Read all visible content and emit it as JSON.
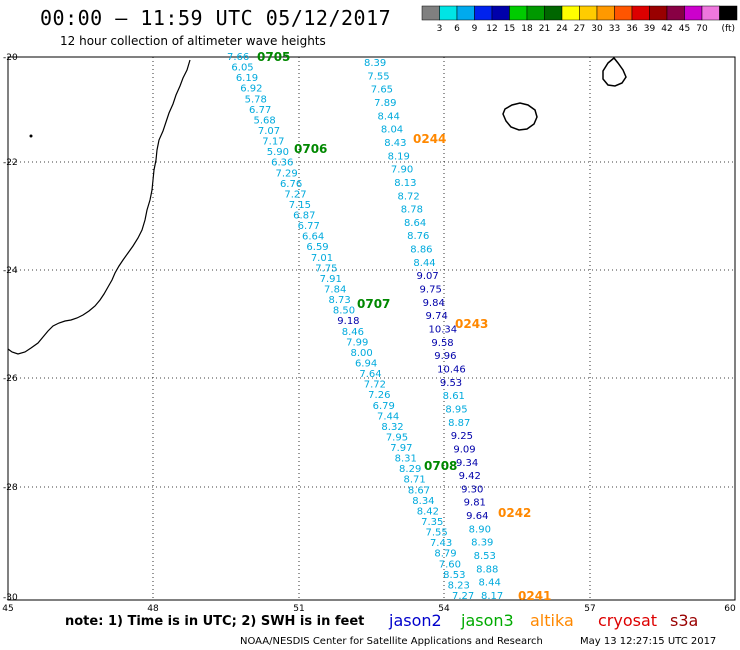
{
  "header": {
    "title": "00:00 – 11:59 UTC 05/12/2017",
    "subtitle": "12 hour collection of altimeter wave heights"
  },
  "colorbar": {
    "unit": "(ft)",
    "ticks": [
      "3",
      "6",
      "9",
      "12",
      "15",
      "18",
      "21",
      "24",
      "27",
      "30",
      "33",
      "36",
      "39",
      "42",
      "45",
      "70"
    ],
    "colors": [
      "#808080",
      "#00e5e5",
      "#00aaee",
      "#0022ee",
      "#0000aa",
      "#00cc00",
      "#009900",
      "#006600",
      "#ffff00",
      "#ffcc00",
      "#ff9900",
      "#ff5500",
      "#dd0000",
      "#990000",
      "#880044",
      "#cc00cc",
      "#ee77dd",
      "#000000"
    ]
  },
  "map": {
    "lat_labels": [
      "-20",
      "-22",
      "-24",
      "-26",
      "-28",
      "-30"
    ],
    "lon_labels": [
      "45",
      "48",
      "51",
      "54",
      "57",
      "60"
    ]
  },
  "passes": {
    "left_track": [
      "7.66",
      "6.05",
      "6.19",
      "6.92",
      "5.78",
      "6.77",
      "5.68",
      "7.07",
      "7.17",
      "5.90",
      "6.36",
      "7.29",
      "6.76",
      "7.27",
      "7.15",
      "6.87",
      "6.77",
      "6.64",
      "6.59",
      "7.01",
      "7.75",
      "7.91",
      "7.84",
      "8.73",
      "8.50",
      "9.18",
      "8.46",
      "7.99",
      "8.00",
      "6.94",
      "7.64",
      "7.72",
      "7.26",
      "6.79",
      "7.44",
      "8.32",
      "7.95",
      "7.97",
      "8.31",
      "8.29",
      "8.71",
      "8.67",
      "8.34",
      "8.42",
      "7.35",
      "7.55",
      "7.43",
      "8.79",
      "7.60",
      "8.53",
      "8.23",
      "7.27"
    ],
    "right_track": [
      "8.39",
      "7.55",
      "7.65",
      "7.89",
      "8.44",
      "8.04",
      "8.43",
      "8.19",
      "7.90",
      "8.13",
      "8.72",
      "8.78",
      "8.64",
      "8.76",
      "8.86",
      "8.44",
      "9.07",
      "9.75",
      "9.84",
      "9.74",
      "10.34",
      "9.58",
      "9.96",
      "10.46",
      "9.53",
      "8.61",
      "8.95",
      "8.87",
      "9.25",
      "9.09",
      "9.34",
      "9.42",
      "9.30",
      "9.81",
      "9.64",
      "8.90",
      "8.39",
      "8.53",
      "8.88",
      "8.44",
      "8.17"
    ],
    "time_labels": [
      {
        "text": "0705",
        "color": "#008800"
      },
      {
        "text": "0706",
        "color": "#008800"
      },
      {
        "text": "0707",
        "color": "#008800"
      },
      {
        "text": "0708",
        "color": "#008800"
      },
      {
        "text": "0244",
        "color": "#ff8800"
      },
      {
        "text": "0243",
        "color": "#ff8800"
      },
      {
        "text": "0242",
        "color": "#ff8800"
      },
      {
        "text": "0241",
        "color": "#ff8800"
      }
    ]
  },
  "footer": {
    "note": "note: 1) Time is in UTC; 2) SWH is in feet",
    "legend": [
      {
        "name": "jason2",
        "color": "#0000cc"
      },
      {
        "name": "jason3",
        "color": "#00aa00"
      },
      {
        "name": "altika",
        "color": "#ff8800"
      },
      {
        "name": "cryosat",
        "color": "#dd0000"
      },
      {
        "name": "s3a",
        "color": "#990000"
      }
    ],
    "credit": "NOAA/NESDIS Center for Satellite Applications and Research",
    "timestamp": "May 13 12:27:15 UTC 2017"
  }
}
